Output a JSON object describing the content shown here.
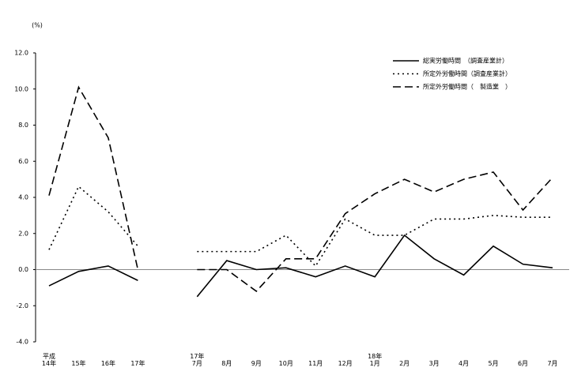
{
  "chart_data": {
    "type": "line",
    "y_label": "(%)",
    "categories": [
      "平成\n14年",
      "15年",
      "16年",
      "17年",
      null,
      "17年\n7月",
      "8月",
      "9月",
      "10月",
      "11月",
      "12月",
      "18年\n1月",
      "2月",
      "3月",
      "4月",
      "5月",
      "6月",
      "7月"
    ],
    "series": [
      {
        "name": "総実労働時間　（調査産業計）",
        "color": "#000000",
        "dash": "solid",
        "values": [
          -0.9,
          -0.1,
          0.2,
          -0.6,
          null,
          -1.5,
          0.5,
          0.0,
          0.1,
          -0.4,
          0.2,
          -0.4,
          1.9,
          0.6,
          -0.3,
          1.3,
          0.3,
          0.1
        ]
      },
      {
        "name": "所定外労働時間（調査産業計）",
        "color": "#000000",
        "dash": "dotted",
        "values": [
          1.1,
          4.6,
          3.2,
          1.3,
          null,
          1.0,
          1.0,
          1.0,
          1.9,
          0.2,
          2.8,
          1.9,
          1.9,
          2.8,
          2.8,
          3.0,
          2.9,
          2.9
        ]
      },
      {
        "name": "所定外労働時間（　製造業　）",
        "color": "#000000",
        "dash": "dashed",
        "values": [
          4.1,
          10.1,
          7.3,
          0.0,
          null,
          0.0,
          0.0,
          -1.2,
          0.6,
          0.6,
          3.1,
          4.2,
          5.0,
          4.3,
          5.0,
          5.4,
          3.3,
          5.1
        ]
      }
    ],
    "ylim": [
      -4,
      12
    ],
    "yticks": [
      {
        "value": -4,
        "label": "-4.0"
      },
      {
        "value": -2,
        "label": "-2.0"
      },
      {
        "value": 0,
        "label": "0.0"
      },
      {
        "value": 2,
        "label": "2.0"
      },
      {
        "value": 4,
        "label": "4.0"
      },
      {
        "value": 6,
        "label": "6.0"
      },
      {
        "value": 8,
        "label": "8.0"
      },
      {
        "value": 10,
        "label": "10.0"
      },
      {
        "value": 12,
        "label": "12.0"
      }
    ],
    "legend": "upper right"
  }
}
